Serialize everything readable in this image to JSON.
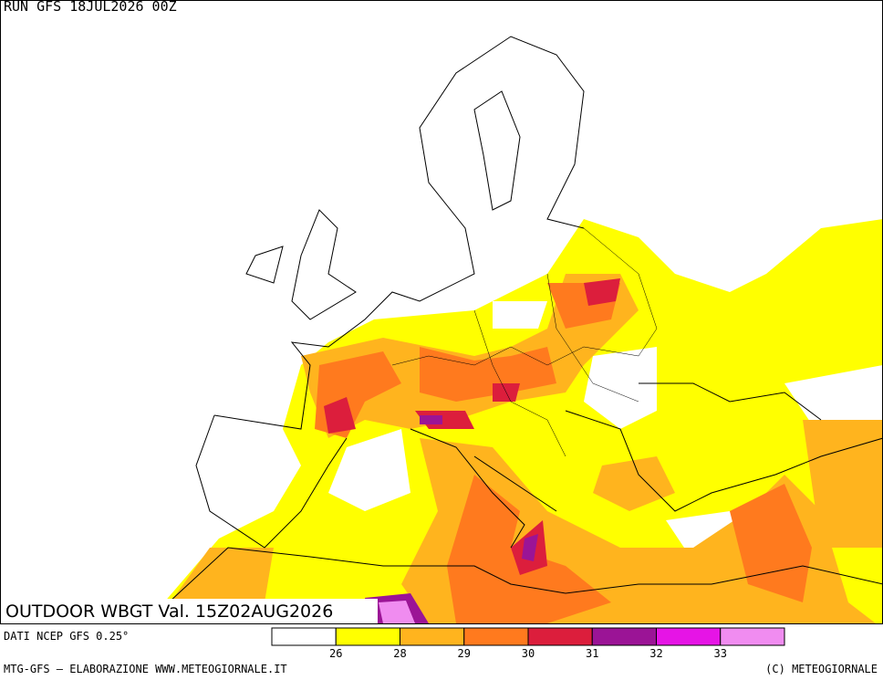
{
  "header": {
    "run": "RUN GFS 18JUL2026 00Z"
  },
  "map": {
    "label": "OUTDOOR WBGT Val. 15Z02AUG2026"
  },
  "legend": {
    "colors": [
      "#ffffff",
      "#ffff00",
      "#ffb41e",
      "#ff7a1e",
      "#dc1e3c",
      "#9b1496",
      "#e614e6",
      "#f08cf0"
    ],
    "thresholds": [
      26,
      28,
      29,
      30,
      31,
      32,
      33
    ]
  },
  "footer": {
    "source": "DATI NCEP GFS 0.25°",
    "credit": "MTG-GFS — ELABORAZIONE WWW.METEOGIORNALE.IT",
    "copyright": "(C) METEOGIORNALE"
  }
}
